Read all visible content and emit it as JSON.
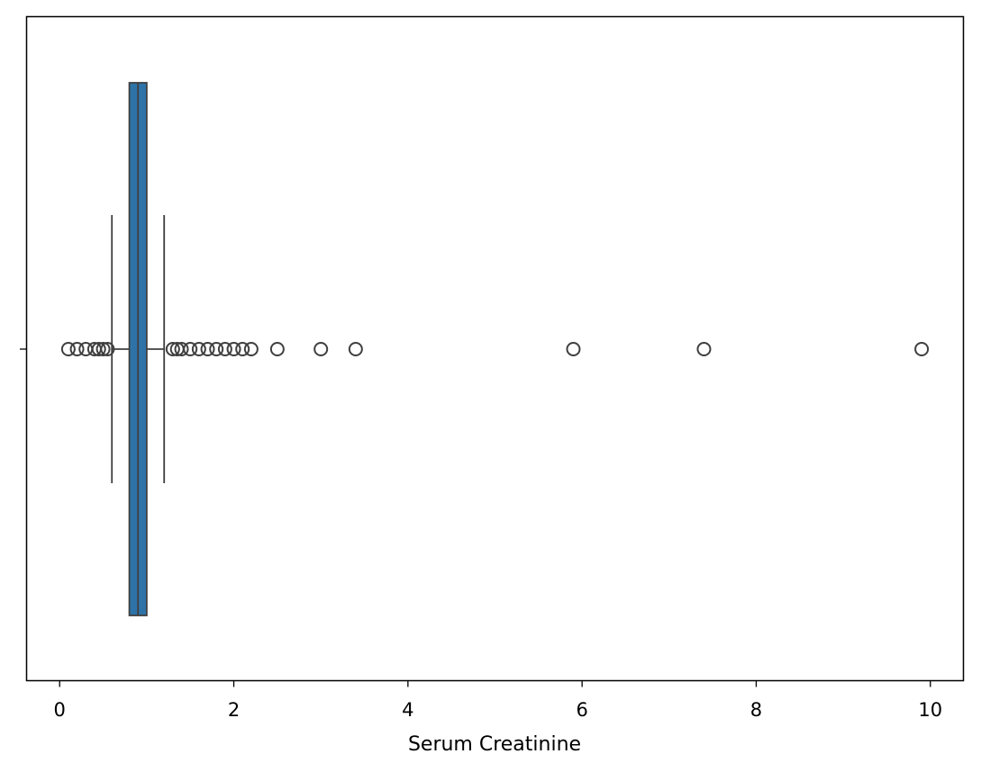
{
  "chart_data": {
    "type": "box",
    "orientation": "horizontal",
    "xlabel": "Serum Creatinine",
    "ylabel": "",
    "xlim": [
      -0.38,
      10.38
    ],
    "xticks": [
      0,
      2,
      4,
      6,
      8,
      10
    ],
    "grid": false,
    "legend": "none",
    "box": {
      "whisker_low": 0.6,
      "q1": 0.8,
      "median": 0.9,
      "q3": 1.0,
      "whisker_high": 1.2
    },
    "outliers": [
      0.1,
      0.2,
      0.3,
      0.4,
      0.45,
      0.5,
      0.55,
      1.3,
      1.35,
      1.4,
      1.5,
      1.6,
      1.7,
      1.8,
      1.9,
      2.0,
      2.1,
      2.2,
      2.5,
      3.0,
      3.4,
      5.9,
      7.4,
      9.9
    ],
    "colors": {
      "box_fill": "#2e73a8",
      "lines": "#3f3f3f",
      "outlier_stroke": "#3f3f3f"
    }
  }
}
